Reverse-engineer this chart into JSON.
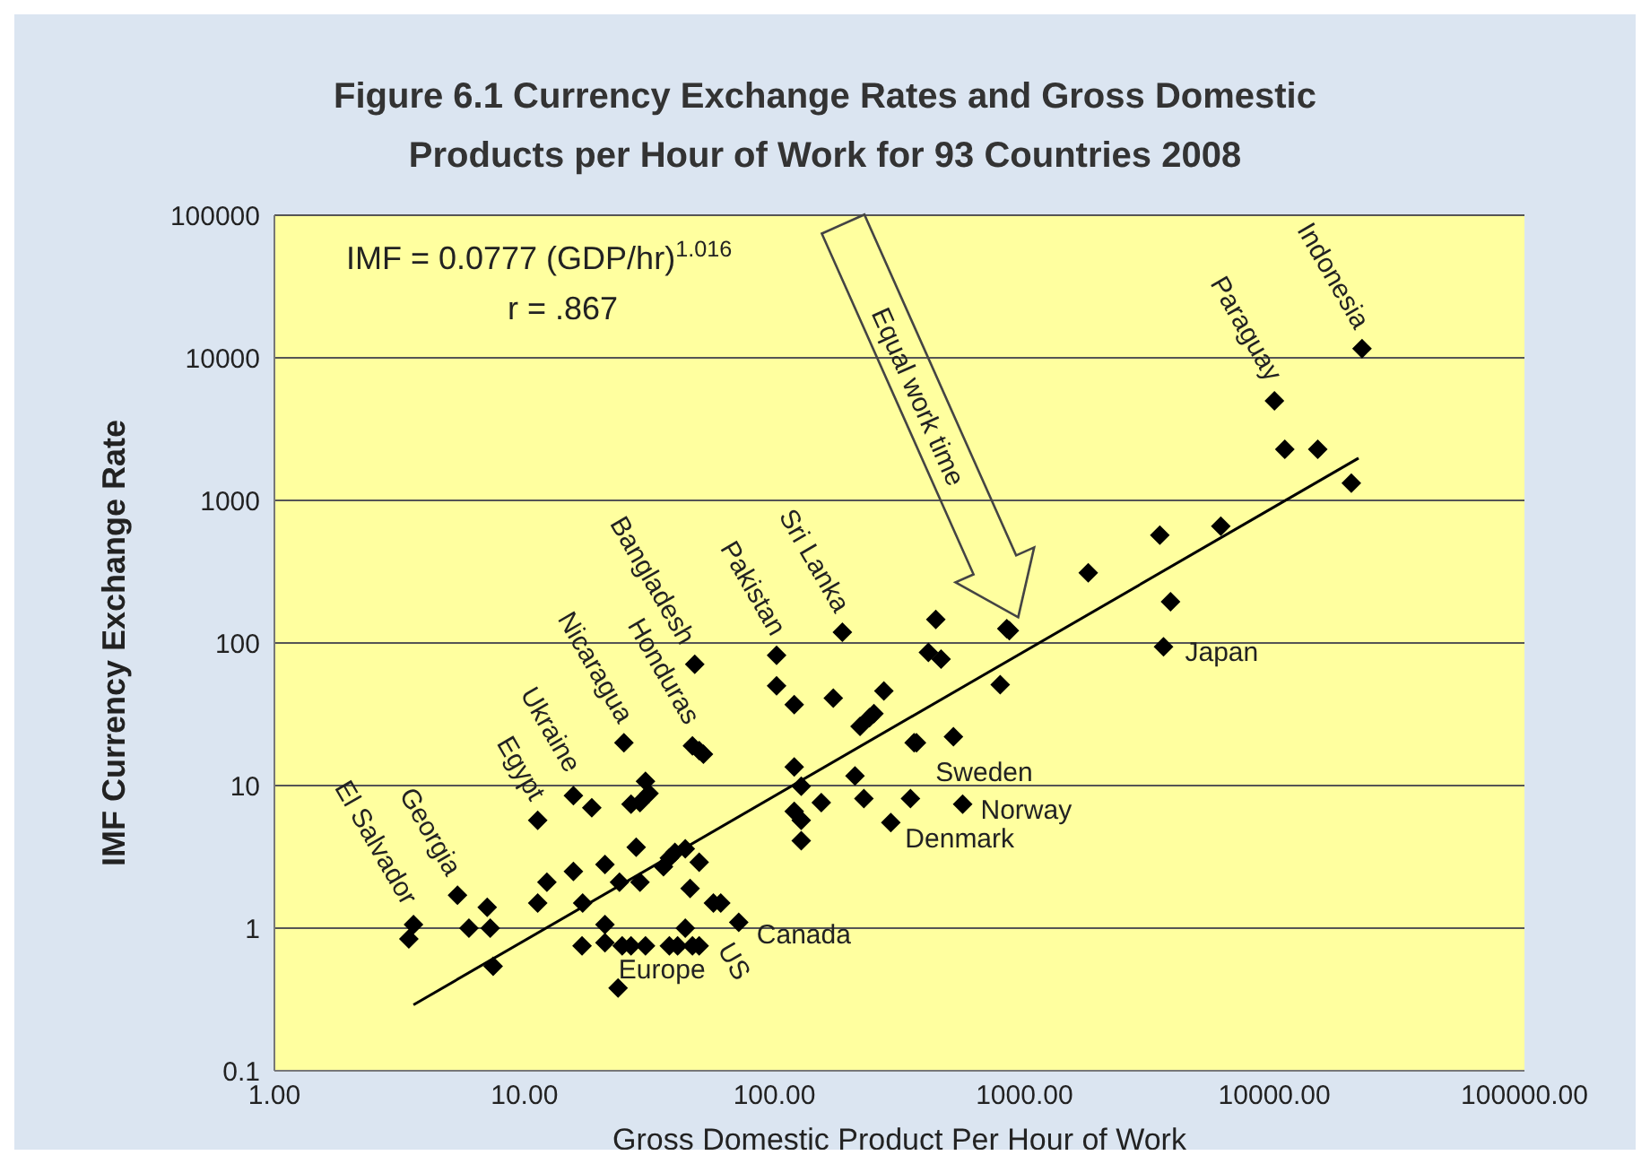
{
  "chart_data": {
    "type": "scatter",
    "title": "Figure 6.1 Currency Exchange Rates and Gross Domestic Products per Hour of Work for 93 Countries 2008",
    "xlabel": "Gross Domestic Product Per Hour of Work",
    "ylabel": "IMF Currency Exchange Rate",
    "log": "xy",
    "grid": "y",
    "xlim": [
      1,
      100000
    ],
    "xticks": [
      {
        "value": 1,
        "label": "1.00"
      },
      {
        "value": 10,
        "label": "10.00"
      },
      {
        "value": 100,
        "label": "100.00"
      },
      {
        "value": 1000,
        "label": "1000.00"
      },
      {
        "value": 10000,
        "label": "10000.00"
      },
      {
        "value": 100000,
        "label": "100000.00"
      }
    ],
    "ylim": [
      0.1,
      100000
    ],
    "yticks": [
      0.1,
      1,
      10,
      100,
      1000,
      10000,
      100000
    ],
    "series": [
      {
        "color": "#000000",
        "marker": "diamond",
        "x": [
          187,
          48,
          102,
          102,
          120,
          172,
          274,
          250,
          240,
          220,
          442,
          413,
          464,
          362,
          25,
          47,
          50,
          52,
          120,
          128,
          120,
          128,
          128,
          154,
          210,
          228,
          292,
          350,
          15.7,
          18.6,
          30.5,
          31.5,
          26.7,
          29,
          11.3,
          28,
          40,
          44,
          50,
          36,
          38,
          21,
          24,
          29,
          15.7,
          12.3,
          17.1,
          11.3,
          46,
          57,
          61,
          72,
          5.4,
          7.1,
          6.0,
          7.3,
          3.6,
          3.45,
          7.5,
          21,
          21,
          17,
          24.6,
          26.7,
          30.5,
          38,
          41,
          44,
          47,
          50,
          23.7,
          22400,
          10000,
          11000,
          14900,
          20300,
          3480,
          6100,
          1800,
          3840,
          850,
          3600,
          800,
          370,
          520,
          566,
          870
        ],
        "values": [
          119,
          71,
          82,
          50,
          37,
          41,
          46,
          32,
          30,
          26,
          146,
          86,
          77,
          20,
          20,
          19,
          17.6,
          16.6,
          13.5,
          9.9,
          6.6,
          5.7,
          4.1,
          7.6,
          11.7,
          8.1,
          5.5,
          8.1,
          8.5,
          7.0,
          10.7,
          8.8,
          7.4,
          7.6,
          5.7,
          3.7,
          3.4,
          3.6,
          2.9,
          2.7,
          3.1,
          2.8,
          2.1,
          2.1,
          2.5,
          2.1,
          1.5,
          1.5,
          1.9,
          1.5,
          1.5,
          1.1,
          1.7,
          1.4,
          1.0,
          1.0,
          1.06,
          0.84,
          0.54,
          1.06,
          0.79,
          0.75,
          0.75,
          0.75,
          0.75,
          0.75,
          0.75,
          1.0,
          0.75,
          0.75,
          0.38,
          11600,
          4990,
          2280,
          2280,
          1320,
          570,
          660,
          310,
          195,
          126,
          94,
          51,
          20,
          22,
          7.4,
          122
        ]
      },
      {
        "type": "line",
        "marker": "none",
        "color": "#000000",
        "x": [
          3.6,
          21700
        ],
        "values": [
          0.29,
          1980
        ]
      }
    ],
    "annotations": [
      "IMF = 0.0777 (GDP/hr)$^{1.016}$",
      "r = .867",
      "Equal work time",
      {
        "text": "El Salvador",
        "x": 3.6,
        "y": 1.06
      },
      {
        "text": "Georgia",
        "x": 5.4,
        "y": 1.7
      },
      {
        "text": "Egypt",
        "x": 11.3,
        "y": 5.7
      },
      {
        "text": "Ukraine",
        "x": 15.7,
        "y": 8.5
      },
      {
        "text": "Nicaragua",
        "x": 25,
        "y": 20
      },
      {
        "text": "Honduras",
        "x": 47,
        "y": 19
      },
      {
        "text": "Bangladesh",
        "x": 48,
        "y": 71
      },
      {
        "text": "Pakistan",
        "x": 102,
        "y": 82
      },
      {
        "text": "Sri Lanka",
        "x": 187,
        "y": 119
      },
      {
        "text": "Paraguay",
        "x": 10000,
        "y": 4990
      },
      {
        "text": "Indonesia",
        "x": 22400,
        "y": 11600
      },
      {
        "text": "Japan",
        "x": 3600,
        "y": 94
      },
      {
        "text": "Sweden",
        "x": 350,
        "y": 8.1
      },
      {
        "text": "Norway",
        "x": 566,
        "y": 7.4
      },
      {
        "text": "Denmark",
        "x": 292,
        "y": 5.5
      },
      {
        "text": "Canada",
        "x": 72,
        "y": 1.1
      },
      {
        "text": "US",
        "x": 50,
        "y": 0.75
      },
      {
        "text": "Europe",
        "x": 30.5,
        "y": 0.75
      }
    ]
  }
}
